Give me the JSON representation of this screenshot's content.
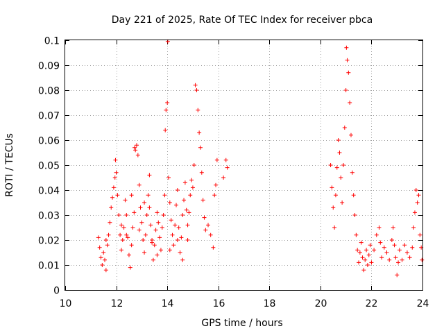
{
  "chart_data": {
    "type": "scatter",
    "title": "Day 221 of 2025, Rate Of TEC Index for receiver pbca",
    "xlabel": "GPS time / hours",
    "ylabel": "ROTI / TECUs",
    "xlim": [
      10,
      24
    ],
    "ylim": [
      0,
      0.1
    ],
    "grid": true,
    "marker": "plus",
    "color": "#ff0000",
    "x_ticks": [
      {
        "value": 10,
        "label": "10"
      },
      {
        "value": 12,
        "label": "12"
      },
      {
        "value": 14,
        "label": "14"
      },
      {
        "value": 16,
        "label": "16"
      },
      {
        "value": 18,
        "label": "18"
      },
      {
        "value": 20,
        "label": "20"
      },
      {
        "value": 22,
        "label": "22"
      },
      {
        "value": 24,
        "label": "24"
      }
    ],
    "y_ticks": [
      {
        "value": 0,
        "label": "0"
      },
      {
        "value": 0.01,
        "label": "0.01"
      },
      {
        "value": 0.02,
        "label": "0.02"
      },
      {
        "value": 0.03,
        "label": "0.03"
      },
      {
        "value": 0.04,
        "label": "0.04"
      },
      {
        "value": 0.05,
        "label": "0.05"
      },
      {
        "value": 0.06,
        "label": "0.06"
      },
      {
        "value": 0.07,
        "label": "0.07"
      },
      {
        "value": 0.08,
        "label": "0.08"
      },
      {
        "value": 0.09,
        "label": "0.09"
      },
      {
        "value": 0.1,
        "label": "0.1"
      }
    ],
    "series": [
      {
        "name": "ROTI",
        "points": [
          [
            11.3,
            0.021
          ],
          [
            11.35,
            0.017
          ],
          [
            11.4,
            0.013
          ],
          [
            11.45,
            0.01
          ],
          [
            11.5,
            0.015
          ],
          [
            11.55,
            0.012
          ],
          [
            11.6,
            0.008
          ],
          [
            11.65,
            0.018
          ],
          [
            11.7,
            0.022
          ],
          [
            11.75,
            0.027
          ],
          [
            11.8,
            0.033
          ],
          [
            11.85,
            0.037
          ],
          [
            11.9,
            0.041
          ],
          [
            11.95,
            0.045
          ],
          [
            11.97,
            0.052
          ],
          [
            12.0,
            0.047
          ],
          [
            12.05,
            0.038
          ],
          [
            12.1,
            0.03
          ],
          [
            12.15,
            0.022
          ],
          [
            12.2,
            0.016
          ],
          [
            12.25,
            0.02
          ],
          [
            12.3,
            0.025
          ],
          [
            12.35,
            0.036
          ],
          [
            12.4,
            0.03
          ],
          [
            12.45,
            0.021
          ],
          [
            12.5,
            0.014
          ],
          [
            12.55,
            0.009
          ],
          [
            12.6,
            0.018
          ],
          [
            12.65,
            0.025
          ],
          [
            12.7,
            0.031
          ],
          [
            12.72,
            0.057
          ],
          [
            12.75,
            0.056
          ],
          [
            12.8,
            0.058
          ],
          [
            12.85,
            0.054
          ],
          [
            12.9,
            0.042
          ],
          [
            12.95,
            0.033
          ],
          [
            13.0,
            0.027
          ],
          [
            13.05,
            0.02
          ],
          [
            13.1,
            0.015
          ],
          [
            13.15,
            0.022
          ],
          [
            13.2,
            0.03
          ],
          [
            13.25,
            0.038
          ],
          [
            13.3,
            0.033
          ],
          [
            13.35,
            0.026
          ],
          [
            13.4,
            0.019
          ],
          [
            13.45,
            0.012
          ],
          [
            13.5,
            0.018
          ],
          [
            13.55,
            0.024
          ],
          [
            13.6,
            0.031
          ],
          [
            13.65,
            0.027
          ],
          [
            13.7,
            0.021
          ],
          [
            13.75,
            0.016
          ],
          [
            13.8,
            0.025
          ],
          [
            13.85,
            0.03
          ],
          [
            13.9,
            0.038
          ],
          [
            13.92,
            0.064
          ],
          [
            13.95,
            0.072
          ],
          [
            14.0,
            0.075
          ],
          [
            14.02,
            0.0995
          ],
          [
            14.05,
            0.045
          ],
          [
            14.1,
            0.035
          ],
          [
            14.15,
            0.028
          ],
          [
            14.2,
            0.022
          ],
          [
            14.25,
            0.018
          ],
          [
            14.3,
            0.026
          ],
          [
            14.35,
            0.034
          ],
          [
            14.4,
            0.04
          ],
          [
            14.45,
            0.025
          ],
          [
            14.5,
            0.015
          ],
          [
            14.55,
            0.021
          ],
          [
            14.6,
            0.03
          ],
          [
            14.65,
            0.036
          ],
          [
            14.7,
            0.043
          ],
          [
            14.75,
            0.032
          ],
          [
            14.8,
            0.026
          ],
          [
            14.85,
            0.031
          ],
          [
            14.9,
            0.038
          ],
          [
            14.95,
            0.044
          ],
          [
            15.0,
            0.041
          ],
          [
            15.05,
            0.05
          ],
          [
            15.1,
            0.082
          ],
          [
            15.15,
            0.08
          ],
          [
            15.2,
            0.072
          ],
          [
            15.25,
            0.063
          ],
          [
            15.3,
            0.057
          ],
          [
            15.35,
            0.047
          ],
          [
            15.4,
            0.036
          ],
          [
            15.45,
            0.029
          ],
          [
            15.5,
            0.024
          ],
          [
            15.6,
            0.026
          ],
          [
            15.7,
            0.022
          ],
          [
            15.8,
            0.017
          ],
          [
            15.85,
            0.038
          ],
          [
            15.9,
            0.042
          ],
          [
            15.95,
            0.052
          ],
          [
            16.2,
            0.045
          ],
          [
            16.3,
            0.052
          ],
          [
            16.35,
            0.049
          ],
          [
            12.4,
            0.022
          ],
          [
            12.9,
            0.024
          ],
          [
            13.4,
            0.02
          ],
          [
            13.6,
            0.014
          ],
          [
            14.1,
            0.016
          ],
          [
            14.6,
            0.012
          ],
          [
            13.1,
            0.035
          ],
          [
            12.2,
            0.026
          ],
          [
            11.6,
            0.02
          ],
          [
            14.4,
            0.02
          ],
          [
            13.3,
            0.046
          ],
          [
            12.6,
            0.038
          ],
          [
            14.8,
            0.02
          ],
          [
            20.4,
            0.05
          ],
          [
            20.45,
            0.041
          ],
          [
            20.5,
            0.033
          ],
          [
            20.55,
            0.025
          ],
          [
            20.6,
            0.038
          ],
          [
            20.65,
            0.049
          ],
          [
            20.7,
            0.06
          ],
          [
            20.75,
            0.055
          ],
          [
            20.8,
            0.045
          ],
          [
            20.85,
            0.035
          ],
          [
            20.9,
            0.05
          ],
          [
            20.95,
            0.065
          ],
          [
            21.0,
            0.08
          ],
          [
            21.02,
            0.097
          ],
          [
            21.05,
            0.092
          ],
          [
            21.1,
            0.087
          ],
          [
            21.15,
            0.075
          ],
          [
            21.2,
            0.062
          ],
          [
            21.25,
            0.047
          ],
          [
            21.3,
            0.038
          ],
          [
            21.35,
            0.03
          ],
          [
            21.4,
            0.022
          ],
          [
            21.45,
            0.016
          ],
          [
            21.5,
            0.011
          ],
          [
            21.55,
            0.015
          ],
          [
            21.6,
            0.019
          ],
          [
            21.65,
            0.013
          ],
          [
            21.7,
            0.008
          ],
          [
            21.75,
            0.012
          ],
          [
            21.8,
            0.016
          ],
          [
            21.85,
            0.01
          ],
          [
            21.9,
            0.014
          ],
          [
            21.95,
            0.018
          ],
          [
            22.0,
            0.011
          ],
          [
            22.1,
            0.016
          ],
          [
            22.2,
            0.022
          ],
          [
            22.3,
            0.025
          ],
          [
            22.35,
            0.019
          ],
          [
            22.4,
            0.013
          ],
          [
            22.5,
            0.017
          ],
          [
            22.6,
            0.015
          ],
          [
            22.7,
            0.012
          ],
          [
            22.8,
            0.02
          ],
          [
            22.85,
            0.025
          ],
          [
            22.9,
            0.018
          ],
          [
            22.95,
            0.013
          ],
          [
            23.0,
            0.006
          ],
          [
            23.05,
            0.011
          ],
          [
            23.1,
            0.016
          ],
          [
            23.2,
            0.012
          ],
          [
            23.3,
            0.018
          ],
          [
            23.4,
            0.015
          ],
          [
            23.5,
            0.013
          ],
          [
            23.6,
            0.017
          ],
          [
            23.65,
            0.025
          ],
          [
            23.7,
            0.031
          ],
          [
            23.75,
            0.04
          ],
          [
            23.8,
            0.035
          ],
          [
            23.85,
            0.038
          ],
          [
            23.9,
            0.022
          ],
          [
            23.95,
            0.017
          ],
          [
            23.98,
            0.012
          ]
        ]
      }
    ]
  }
}
